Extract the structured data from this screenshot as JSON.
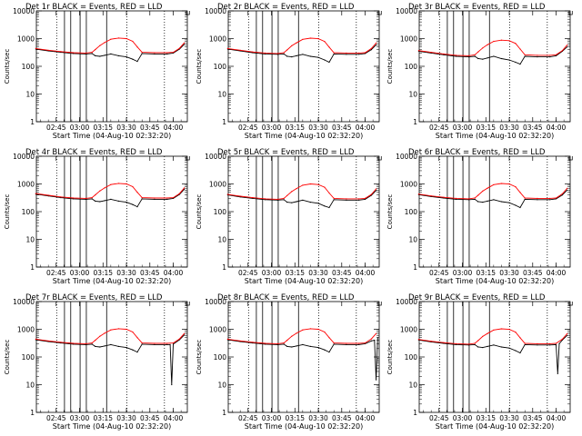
{
  "figure": {
    "ylabel": "Counts/sec",
    "xlabel": "Start Time (04-Aug-10 02:32:20)",
    "y_ticks": [
      "1",
      "10",
      "100",
      "1000",
      "10000"
    ],
    "x_ticks": [
      "02:45",
      "03:00",
      "03:15",
      "03:30",
      "03:45",
      "04:00"
    ],
    "colors": {
      "events": "#000000",
      "lld": "#ff0000"
    }
  },
  "chart_data": [
    {
      "type": "line",
      "title": "Det 1r BLACK = Events, RED = LLD",
      "xlabel": "Start Time (04-Aug-10 02:32:20)",
      "ylabel": "Counts/sec",
      "yscale": "log",
      "ylim": [
        1,
        10000
      ],
      "xlim": [
        "02:32:20",
        "04:09:00"
      ],
      "series": [
        {
          "name": "Events",
          "color": "#000000",
          "x": [
            "02:32",
            "02:40",
            "02:48",
            "02:56",
            "03:04",
            "03:08",
            "03:10",
            "03:13",
            "03:16",
            "03:20",
            "03:25",
            "03:30",
            "03:34",
            "03:37",
            "03:40",
            "03:48",
            "03:56",
            "04:00",
            "04:04",
            "04:07"
          ],
          "y": [
            420,
            360,
            320,
            290,
            280,
            290,
            240,
            230,
            250,
            280,
            240,
            220,
            180,
            150,
            290,
            280,
            280,
            300,
            420,
            620
          ]
        },
        {
          "name": "LLD",
          "color": "#ff0000",
          "x": [
            "02:32",
            "02:40",
            "02:48",
            "02:56",
            "03:04",
            "03:08",
            "03:10",
            "03:13",
            "03:16",
            "03:20",
            "03:25",
            "03:30",
            "03:34",
            "03:37",
            "03:40",
            "03:48",
            "03:56",
            "04:00",
            "04:04",
            "04:07"
          ],
          "y": [
            440,
            380,
            340,
            310,
            300,
            320,
            400,
            560,
            720,
            950,
            1050,
            1000,
            800,
            500,
            320,
            310,
            310,
            320,
            450,
            700
          ]
        }
      ]
    },
    {
      "type": "line",
      "title": "Det 2r BLACK = Events, RED = LLD",
      "xlabel": "Start Time (04-Aug-10 02:32:20)",
      "ylabel": "Counts/sec",
      "yscale": "log",
      "ylim": [
        1,
        10000
      ],
      "xlim": [
        "02:32:20",
        "04:09:00"
      ],
      "series": [
        {
          "name": "Events",
          "color": "#000000",
          "x": [
            "02:32",
            "02:40",
            "02:48",
            "02:56",
            "03:04",
            "03:08",
            "03:10",
            "03:13",
            "03:16",
            "03:20",
            "03:25",
            "03:30",
            "03:34",
            "03:37",
            "03:40",
            "03:48",
            "03:56",
            "04:00",
            "04:04",
            "04:07"
          ],
          "y": [
            420,
            360,
            310,
            280,
            270,
            280,
            230,
            220,
            240,
            270,
            230,
            210,
            170,
            140,
            280,
            270,
            270,
            290,
            400,
            600
          ]
        },
        {
          "name": "LLD",
          "color": "#ff0000",
          "x": [
            "02:32",
            "02:40",
            "02:48",
            "02:56",
            "03:04",
            "03:08",
            "03:10",
            "03:13",
            "03:16",
            "03:20",
            "03:25",
            "03:30",
            "03:34",
            "03:37",
            "03:40",
            "03:48",
            "03:56",
            "04:00",
            "04:04",
            "04:07"
          ],
          "y": [
            440,
            380,
            330,
            300,
            290,
            310,
            390,
            550,
            700,
            940,
            1040,
            990,
            790,
            490,
            310,
            300,
            300,
            310,
            440,
            690
          ]
        }
      ]
    },
    {
      "type": "line",
      "title": "Det 3r BLACK = Events, RED = LLD",
      "xlabel": "Start Time (04-Aug-10 02:32:20)",
      "ylabel": "Counts/sec",
      "yscale": "log",
      "ylim": [
        1,
        10000
      ],
      "xlim": [
        "02:32:20",
        "04:09:00"
      ],
      "series": [
        {
          "name": "Events",
          "color": "#000000",
          "x": [
            "02:32",
            "02:40",
            "02:48",
            "02:56",
            "03:04",
            "03:08",
            "03:10",
            "03:13",
            "03:16",
            "03:20",
            "03:25",
            "03:30",
            "03:34",
            "03:37",
            "03:40",
            "03:48",
            "03:56",
            "04:00",
            "04:04",
            "04:07"
          ],
          "y": [
            350,
            300,
            260,
            230,
            220,
            230,
            190,
            180,
            200,
            230,
            190,
            170,
            140,
            120,
            230,
            220,
            220,
            240,
            350,
            500
          ]
        },
        {
          "name": "LLD",
          "color": "#ff0000",
          "x": [
            "02:32",
            "02:40",
            "02:48",
            "02:56",
            "03:04",
            "03:08",
            "03:10",
            "03:13",
            "03:16",
            "03:20",
            "03:25",
            "03:30",
            "03:34",
            "03:37",
            "03:40",
            "03:48",
            "03:56",
            "04:00",
            "04:04",
            "04:07"
          ],
          "y": [
            370,
            320,
            280,
            250,
            240,
            260,
            330,
            460,
            600,
            800,
            880,
            840,
            670,
            420,
            260,
            250,
            250,
            260,
            370,
            580
          ]
        }
      ]
    },
    {
      "type": "line",
      "title": "Det 4r BLACK = Events, RED = LLD",
      "xlabel": "Start Time (04-Aug-10 02:32:20)",
      "ylabel": "Counts/sec",
      "yscale": "log",
      "ylim": [
        1,
        10000
      ],
      "xlim": [
        "02:32:20",
        "04:09:00"
      ],
      "series": [
        {
          "name": "Events",
          "color": "#000000",
          "x": [
            "02:32",
            "02:40",
            "02:48",
            "02:56",
            "03:04",
            "03:08",
            "03:10",
            "03:13",
            "03:16",
            "03:20",
            "03:25",
            "03:30",
            "03:34",
            "03:37",
            "03:40",
            "03:48",
            "03:56",
            "04:00",
            "04:04",
            "04:07"
          ],
          "y": [
            430,
            370,
            320,
            290,
            280,
            290,
            240,
            230,
            250,
            280,
            240,
            220,
            180,
            150,
            290,
            280,
            280,
            300,
            420,
            640
          ]
        },
        {
          "name": "LLD",
          "color": "#ff0000",
          "x": [
            "02:32",
            "02:40",
            "02:48",
            "02:56",
            "03:04",
            "03:08",
            "03:10",
            "03:13",
            "03:16",
            "03:20",
            "03:25",
            "03:30",
            "03:34",
            "03:37",
            "03:40",
            "03:48",
            "03:56",
            "04:00",
            "04:04",
            "04:07"
          ],
          "y": [
            450,
            390,
            340,
            310,
            300,
            320,
            400,
            560,
            720,
            950,
            1050,
            1000,
            800,
            500,
            320,
            310,
            310,
            320,
            450,
            720
          ]
        }
      ]
    },
    {
      "type": "line",
      "title": "Det 5r BLACK = Events, RED = LLD",
      "xlabel": "Start Time (04-Aug-10 02:32:20)",
      "ylabel": "Counts/sec",
      "yscale": "log",
      "ylim": [
        1,
        10000
      ],
      "xlim": [
        "02:32:20",
        "04:09:00"
      ],
      "series": [
        {
          "name": "Events",
          "color": "#000000",
          "x": [
            "02:32",
            "02:40",
            "02:48",
            "02:56",
            "03:04",
            "03:08",
            "03:10",
            "03:13",
            "03:16",
            "03:20",
            "03:25",
            "03:30",
            "03:34",
            "03:37",
            "03:40",
            "03:48",
            "03:56",
            "04:00",
            "04:04",
            "04:07"
          ],
          "y": [
            400,
            340,
            300,
            270,
            260,
            270,
            220,
            210,
            230,
            260,
            220,
            200,
            160,
            140,
            270,
            260,
            260,
            280,
            390,
            580
          ]
        },
        {
          "name": "LLD",
          "color": "#ff0000",
          "x": [
            "02:32",
            "02:40",
            "02:48",
            "02:56",
            "03:04",
            "03:08",
            "03:10",
            "03:13",
            "03:16",
            "03:20",
            "03:25",
            "03:30",
            "03:34",
            "03:37",
            "03:40",
            "03:48",
            "03:56",
            "04:00",
            "04:04",
            "04:07"
          ],
          "y": [
            420,
            360,
            320,
            290,
            280,
            300,
            380,
            530,
            680,
            900,
            1000,
            950,
            760,
            470,
            300,
            290,
            290,
            300,
            420,
            660
          ]
        }
      ]
    },
    {
      "type": "line",
      "title": "Det 6r BLACK = Events, RED = LLD",
      "xlabel": "Start Time (04-Aug-10 02:32:20)",
      "ylabel": "Counts/sec",
      "yscale": "log",
      "ylim": [
        1,
        10000
      ],
      "xlim": [
        "02:32:20",
        "04:09:00"
      ],
      "series": [
        {
          "name": "Events",
          "color": "#000000",
          "x": [
            "02:32",
            "02:40",
            "02:48",
            "02:56",
            "03:04",
            "03:08",
            "03:10",
            "03:13",
            "03:16",
            "03:20",
            "03:25",
            "03:30",
            "03:34",
            "03:37",
            "03:40",
            "03:48",
            "03:56",
            "04:00",
            "04:04",
            "04:07"
          ],
          "y": [
            410,
            350,
            310,
            280,
            270,
            280,
            230,
            220,
            240,
            270,
            230,
            210,
            170,
            140,
            280,
            270,
            270,
            290,
            400,
            600
          ]
        },
        {
          "name": "LLD",
          "color": "#ff0000",
          "x": [
            "02:32",
            "02:40",
            "02:48",
            "02:56",
            "03:04",
            "03:08",
            "03:10",
            "03:13",
            "03:16",
            "03:20",
            "03:25",
            "03:30",
            "03:34",
            "03:37",
            "03:40",
            "03:48",
            "03:56",
            "04:00",
            "04:04",
            "04:07"
          ],
          "y": [
            430,
            370,
            330,
            300,
            290,
            310,
            390,
            550,
            700,
            940,
            1040,
            990,
            790,
            490,
            310,
            300,
            300,
            310,
            440,
            690
          ]
        }
      ]
    },
    {
      "type": "line",
      "title": "Det 7r BLACK = Events, RED = LLD",
      "xlabel": "Start Time (04-Aug-10 02:32:20)",
      "ylabel": "Counts/sec",
      "yscale": "log",
      "ylim": [
        1,
        10000
      ],
      "xlim": [
        "02:32:20",
        "04:09:00"
      ],
      "series": [
        {
          "name": "Events",
          "color": "#000000",
          "x": [
            "02:32",
            "02:40",
            "02:48",
            "02:56",
            "03:04",
            "03:08",
            "03:10",
            "03:13",
            "03:16",
            "03:20",
            "03:25",
            "03:30",
            "03:34",
            "03:37",
            "03:40",
            "03:48",
            "03:56",
            "03:58",
            "03:59",
            "04:00",
            "04:04",
            "04:07"
          ],
          "y": [
            420,
            360,
            320,
            290,
            280,
            290,
            240,
            230,
            250,
            280,
            240,
            220,
            180,
            150,
            290,
            280,
            280,
            280,
            10,
            290,
            420,
            620
          ]
        },
        {
          "name": "LLD",
          "color": "#ff0000",
          "x": [
            "02:32",
            "02:40",
            "02:48",
            "02:56",
            "03:04",
            "03:08",
            "03:10",
            "03:13",
            "03:16",
            "03:20",
            "03:25",
            "03:30",
            "03:34",
            "03:37",
            "03:40",
            "03:48",
            "03:56",
            "04:00",
            "04:04",
            "04:07"
          ],
          "y": [
            440,
            380,
            340,
            310,
            300,
            320,
            400,
            560,
            720,
            950,
            1050,
            1000,
            800,
            500,
            320,
            310,
            310,
            320,
            450,
            700
          ]
        }
      ]
    },
    {
      "type": "line",
      "title": "Det 8r BLACK = Events, RED = LLD",
      "xlabel": "Start Time (04-Aug-10 02:32:20)",
      "ylabel": "Counts/sec",
      "yscale": "log",
      "ylim": [
        1,
        10000
      ],
      "xlim": [
        "02:32:20",
        "04:09:00"
      ],
      "series": [
        {
          "name": "Events",
          "color": "#000000",
          "x": [
            "02:32",
            "02:40",
            "02:48",
            "02:56",
            "03:04",
            "03:08",
            "03:10",
            "03:13",
            "03:16",
            "03:20",
            "03:25",
            "03:30",
            "03:34",
            "03:37",
            "03:40",
            "03:48",
            "03:56",
            "04:00",
            "04:04",
            "04:06",
            "04:07",
            "04:08"
          ],
          "y": [
            420,
            360,
            320,
            290,
            280,
            290,
            240,
            230,
            250,
            280,
            240,
            220,
            180,
            150,
            290,
            280,
            280,
            300,
            380,
            400,
            15,
            500
          ]
        },
        {
          "name": "LLD",
          "color": "#ff0000",
          "x": [
            "02:32",
            "02:40",
            "02:48",
            "02:56",
            "03:04",
            "03:08",
            "03:10",
            "03:13",
            "03:16",
            "03:20",
            "03:25",
            "03:30",
            "03:34",
            "03:37",
            "03:40",
            "03:48",
            "03:56",
            "04:00",
            "04:04",
            "04:07"
          ],
          "y": [
            440,
            380,
            340,
            310,
            300,
            320,
            400,
            560,
            720,
            950,
            1050,
            1000,
            800,
            500,
            320,
            310,
            310,
            320,
            450,
            700
          ]
        }
      ]
    },
    {
      "type": "line",
      "title": "Det 9r BLACK = Events, RED = LLD",
      "xlabel": "Start Time (04-Aug-10 02:32:20)",
      "ylabel": "Counts/sec",
      "yscale": "log",
      "ylim": [
        1,
        10000
      ],
      "xlim": [
        "02:32:20",
        "04:09:00"
      ],
      "series": [
        {
          "name": "Events",
          "color": "#000000",
          "x": [
            "02:32",
            "02:40",
            "02:48",
            "02:56",
            "03:04",
            "03:08",
            "03:10",
            "03:13",
            "03:16",
            "03:20",
            "03:25",
            "03:30",
            "03:34",
            "03:37",
            "03:40",
            "03:48",
            "03:56",
            "04:00",
            "04:01",
            "04:02",
            "04:04",
            "04:07"
          ],
          "y": [
            410,
            350,
            310,
            280,
            270,
            280,
            230,
            220,
            240,
            270,
            230,
            210,
            170,
            140,
            280,
            270,
            270,
            280,
            25,
            300,
            410,
            600
          ]
        },
        {
          "name": "LLD",
          "color": "#ff0000",
          "x": [
            "02:32",
            "02:40",
            "02:48",
            "02:56",
            "03:04",
            "03:08",
            "03:10",
            "03:13",
            "03:16",
            "03:20",
            "03:25",
            "03:30",
            "03:34",
            "03:37",
            "03:40",
            "03:48",
            "03:56",
            "04:00",
            "04:04",
            "04:07"
          ],
          "y": [
            430,
            370,
            330,
            300,
            290,
            310,
            390,
            550,
            700,
            940,
            1040,
            990,
            790,
            490,
            310,
            300,
            300,
            310,
            440,
            690
          ]
        }
      ]
    }
  ]
}
